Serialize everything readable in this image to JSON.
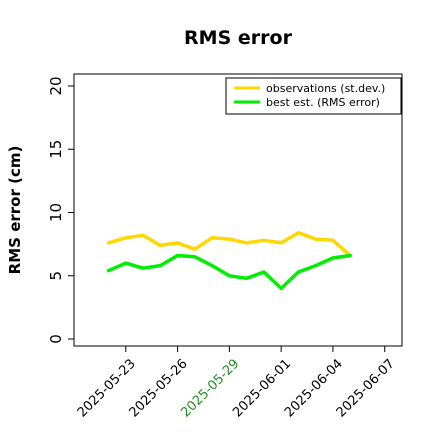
{
  "chart_data": {
    "type": "line",
    "title": "RMS error",
    "ylabel": "RMS error (cm)",
    "xlabel": "",
    "ylim": [
      0,
      21
    ],
    "xlim": [
      "2025-05-20",
      "2025-06-08"
    ],
    "yticks": [
      0,
      5,
      10,
      15,
      20
    ],
    "xticks": [
      {
        "label": "2025-05-23",
        "date": "2025-05-23",
        "color": "#000000"
      },
      {
        "label": "2025-05-26",
        "date": "2025-05-26",
        "color": "#000000"
      },
      {
        "label": "2025-05-29",
        "date": "2025-05-29",
        "color": "#228b22"
      },
      {
        "label": "2025-06-01",
        "date": "2025-06-01",
        "color": "#000000"
      },
      {
        "label": "2025-06-04",
        "date": "2025-06-04",
        "color": "#000000"
      },
      {
        "label": "2025-06-07",
        "date": "2025-06-07",
        "color": "#000000"
      }
    ],
    "x": [
      "2025-05-22",
      "2025-05-23",
      "2025-05-24",
      "2025-05-25",
      "2025-05-26",
      "2025-05-27",
      "2025-05-28",
      "2025-05-29",
      "2025-05-30",
      "2025-05-31",
      "2025-06-01",
      "2025-06-02",
      "2025-06-03",
      "2025-06-04",
      "2025-06-05"
    ],
    "series": [
      {
        "name": "observations (st.dev.)",
        "color": "#ffd700",
        "values": [
          7.6,
          8.0,
          8.2,
          7.4,
          7.6,
          7.1,
          8.0,
          7.9,
          7.6,
          7.8,
          7.6,
          8.4,
          7.9,
          7.8,
          6.6
        ]
      },
      {
        "name": "best est. (RMS error)",
        "color": "#00ee00",
        "values": [
          5.4,
          6.0,
          5.6,
          5.8,
          6.6,
          6.5,
          5.8,
          5.0,
          4.8,
          5.3,
          4.0,
          5.3,
          5.8,
          6.4,
          6.6
        ]
      }
    ],
    "grid": false,
    "legend_position": "top-right"
  }
}
